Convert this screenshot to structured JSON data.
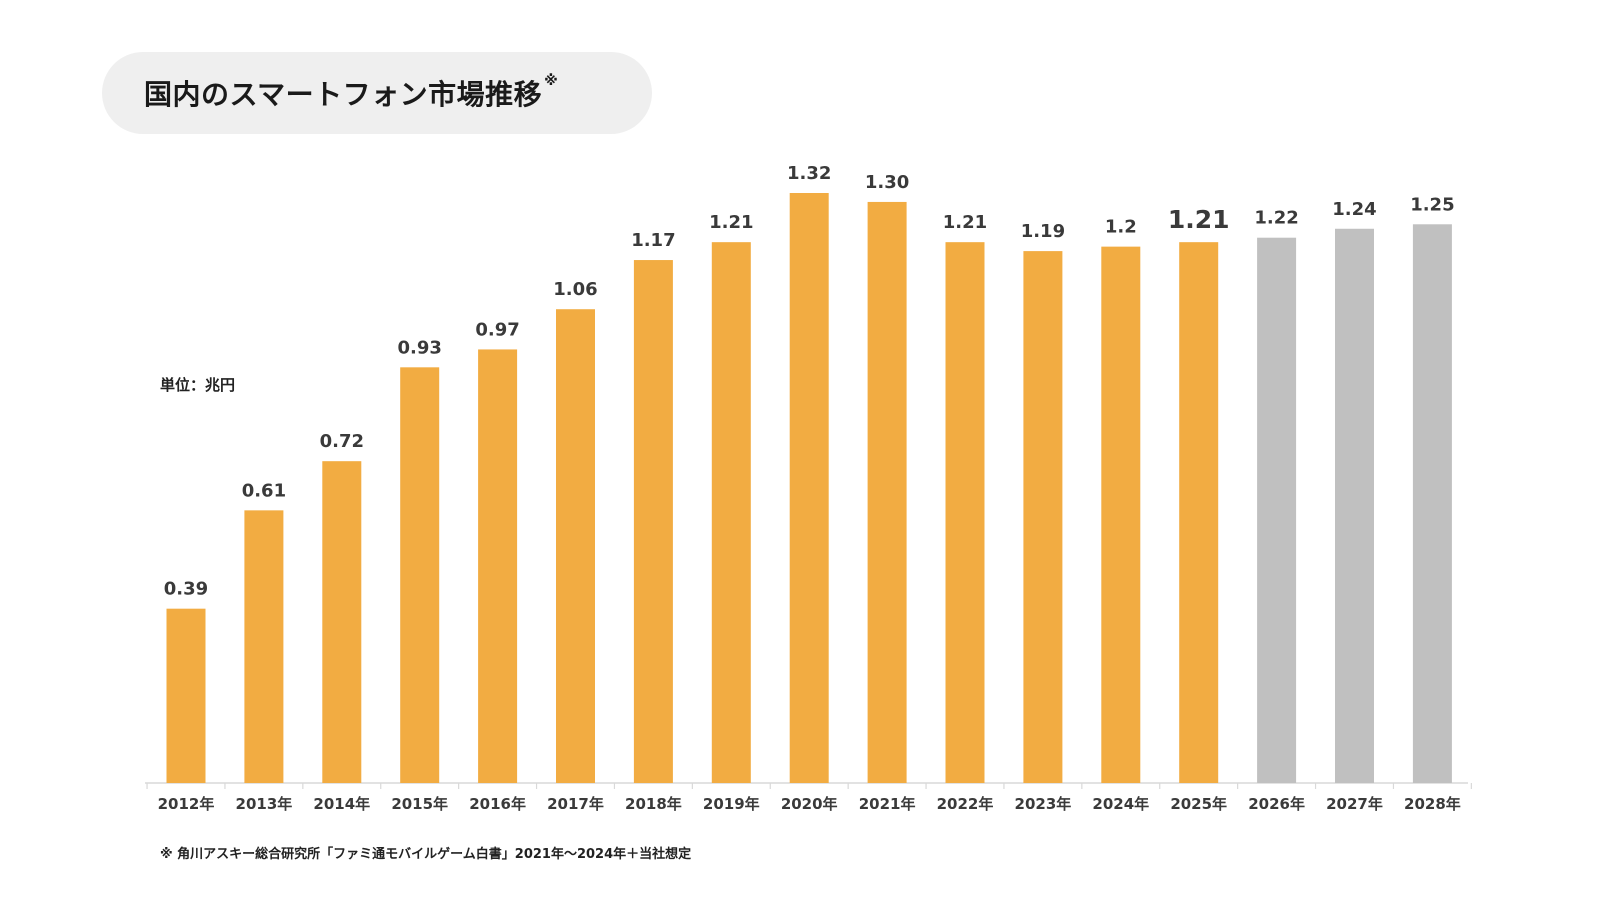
{
  "title": {
    "text": "国内のスマートフォン市場推移",
    "mark": "※"
  },
  "unit_label": "単位：兆円",
  "footnote": "※  角川アスキー総合研究所「ファミ通モバイルゲーム白書」2021年〜2024年＋当社想定",
  "colors": {
    "actual": "#f2ac42",
    "forecast": "#c0c0c0",
    "axis": "#d9d9d9",
    "label": "#3a3a3a",
    "title_bg": "#efefef"
  },
  "chart_data": {
    "type": "bar",
    "title": "国内のスマートフォン市場推移",
    "ylabel": "単位：兆円",
    "xlabel": "",
    "ylim": [
      0,
      1.4
    ],
    "grid": false,
    "categories": [
      "2012年",
      "2013年",
      "2014年",
      "2015年",
      "2016年",
      "2017年",
      "2018年",
      "2019年",
      "2020年",
      "2021年",
      "2022年",
      "2023年",
      "2024年",
      "2025年",
      "2026年",
      "2027年",
      "2028年"
    ],
    "values": [
      0.39,
      0.61,
      0.72,
      0.93,
      0.97,
      1.06,
      1.17,
      1.21,
      1.32,
      1.3,
      1.21,
      1.19,
      1.2,
      1.21,
      1.22,
      1.24,
      1.25
    ],
    "value_labels": [
      "0.39",
      "0.61",
      "0.72",
      "0.93",
      "0.97",
      "1.06",
      "1.17",
      "1.21",
      "1.32",
      "1.30",
      "1.21",
      "1.19",
      "1.2",
      "1.21",
      "1.22",
      "1.24",
      "1.25"
    ],
    "bar_style": [
      "actual",
      "actual",
      "actual",
      "actual",
      "actual",
      "actual",
      "actual",
      "actual",
      "actual",
      "actual",
      "actual",
      "actual",
      "actual",
      "actual",
      "forecast",
      "forecast",
      "forecast"
    ],
    "emphasized_label_index": 13
  }
}
